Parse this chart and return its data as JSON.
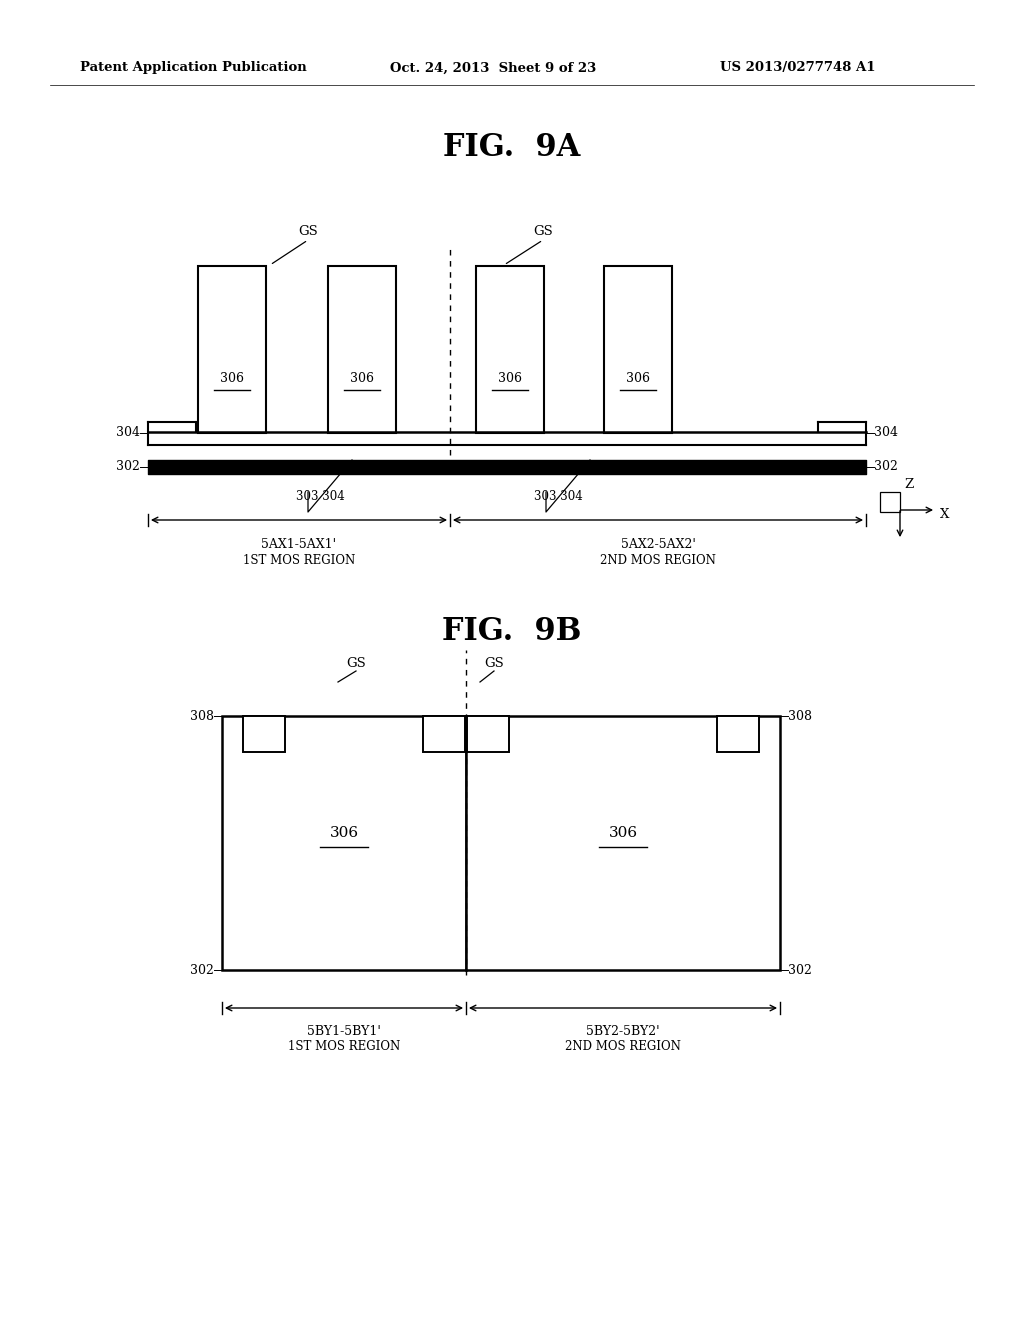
{
  "bg_color": "#ffffff",
  "header_text": "Patent Application Publication",
  "header_date": "Oct. 24, 2013  Sheet 9 of 23",
  "header_patent": "US 2013/0277748 A1",
  "fig9a_title": "FIG.  9A",
  "fig9b_title": "FIG.  9B",
  "fig9a": {
    "label_1st_mos": "1ST MOS REGION",
    "label_2nd_mos": "2ND MOS REGION"
  },
  "fig9b": {
    "label_1st_mos": "1ST MOS REGION",
    "label_2nd_mos": "2ND MOS REGION"
  }
}
